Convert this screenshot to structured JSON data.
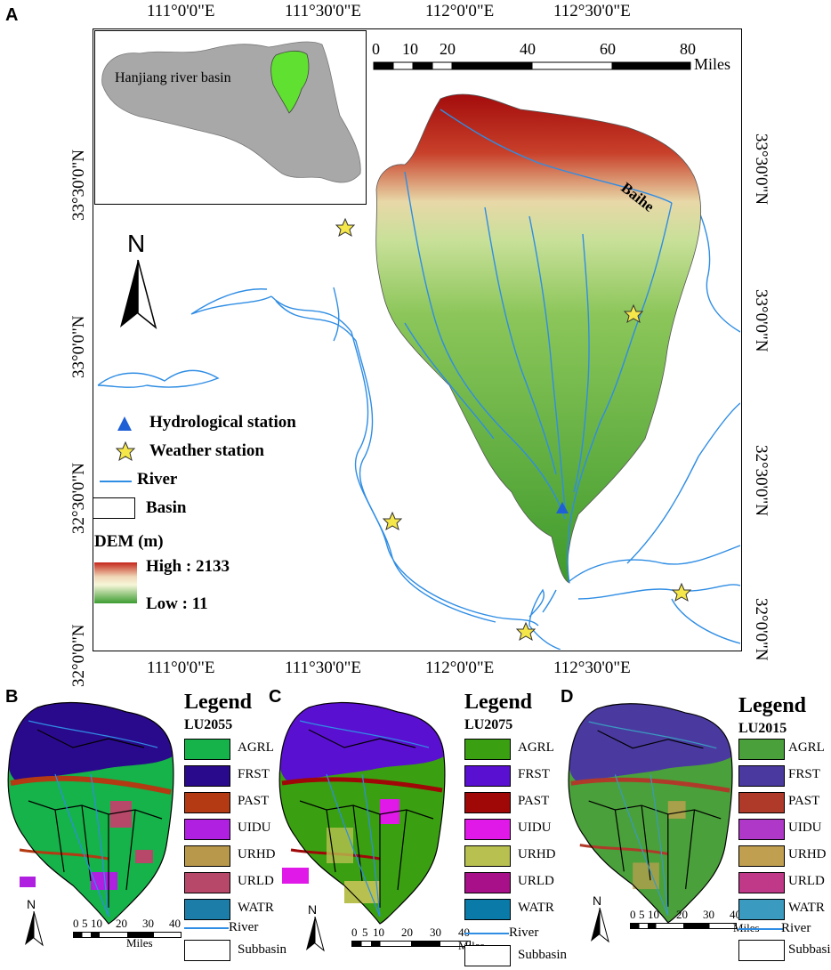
{
  "panelA": {
    "letter": "A",
    "top_ticks": [
      "111°0'0\"E",
      "111°30'0\"E",
      "112°0'0\"E",
      "112°30'0\"E"
    ],
    "bottom_ticks": [
      "111°0'0\"E",
      "111°30'0\"E",
      "112°0'0\"E",
      "112°30'0\"E"
    ],
    "left_ticks": [
      "33°30'0\"N",
      "33°0'0\"N",
      "32°30'0\"N",
      "32°0'0\"N"
    ],
    "right_ticks": [
      "33°30'0\"N",
      "33°0'0\"N",
      "32°30'0\"N",
      "32°0'0\"N"
    ],
    "inset_label": "Hanjiang river basin",
    "scale": {
      "ticks": [
        "0",
        "10",
        "20",
        "40",
        "60",
        "80"
      ],
      "unit": "Miles"
    },
    "river_label": "Baihe",
    "north": "N",
    "legend": {
      "hydro": "Hydrological station",
      "weather": "Weather station",
      "river": "River",
      "basin": "Basin",
      "dem_title": "DEM (m)",
      "high": "High : 2133",
      "low": "Low : 11"
    },
    "colors": {
      "hydro": "#1f5fd6",
      "star": "#f5e64a",
      "river": "#2f8de4"
    }
  },
  "panels": [
    {
      "letter": "B",
      "legend_title": "Legend",
      "sub": "LU2055",
      "classes": [
        {
          "code": "AGRL",
          "color": "#16b24a"
        },
        {
          "code": "FRST",
          "color": "#2a0a8c"
        },
        {
          "code": "PAST",
          "color": "#b33a12"
        },
        {
          "code": "UIDU",
          "color": "#b020e0"
        },
        {
          "code": "URHD",
          "color": "#b8984a"
        },
        {
          "code": "URLD",
          "color": "#b8486a"
        },
        {
          "code": "WATR",
          "color": "#1c7ea8"
        }
      ],
      "river": "River",
      "subbasin": "Subbasin",
      "north": "N",
      "scale_ticks": [
        "0",
        "5",
        "10",
        "20",
        "30",
        "40"
      ],
      "scale_unit": "Miles"
    },
    {
      "letter": "C",
      "legend_title": "Legend",
      "sub": "LU2075",
      "classes": [
        {
          "code": "AGRL",
          "color": "#3aa012"
        },
        {
          "code": "FRST",
          "color": "#5a10d0"
        },
        {
          "code": "PAST",
          "color": "#a00808"
        },
        {
          "code": "UIDU",
          "color": "#e018e8"
        },
        {
          "code": "URHD",
          "color": "#b8c050"
        },
        {
          "code": "URLD",
          "color": "#a8108a"
        },
        {
          "code": "WATR",
          "color": "#0a7aa8"
        }
      ],
      "river": "River",
      "subbasin": "Subbasin",
      "north": "N",
      "scale_ticks": [
        "0",
        "5",
        "10",
        "20",
        "30",
        "40"
      ],
      "scale_unit": "Miles"
    },
    {
      "letter": "D",
      "legend_title": "Legend",
      "sub": "LU2015",
      "classes": [
        {
          "code": "AGRL",
          "color": "#4aa03a"
        },
        {
          "code": "FRST",
          "color": "#4a3aa0"
        },
        {
          "code": "PAST",
          "color": "#b03a2a"
        },
        {
          "code": "UIDU",
          "color": "#b038c8"
        },
        {
          "code": "URHD",
          "color": "#c0a050"
        },
        {
          "code": "URLD",
          "color": "#c03888"
        },
        {
          "code": "WATR",
          "color": "#3a9ac0"
        }
      ],
      "river": "River",
      "subbasin": "Subbasin",
      "north": "N",
      "scale_ticks": [
        "0",
        "5",
        "10",
        "20",
        "30",
        "40"
      ],
      "scale_unit": "Miles"
    }
  ]
}
